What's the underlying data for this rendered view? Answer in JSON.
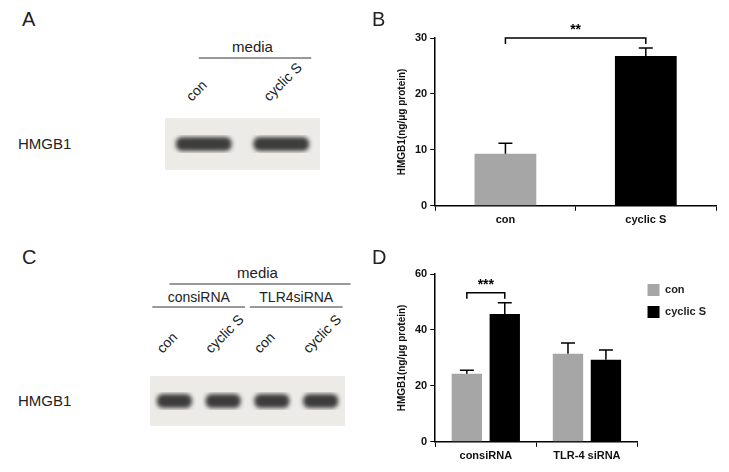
{
  "chart_data": [
    {
      "panel": "B",
      "type": "bar",
      "categories": [
        "con",
        "cyclic S"
      ],
      "values": [
        9.3,
        26.8
      ],
      "errors": [
        1.9,
        1.4
      ],
      "colors": [
        "#a6a6a6",
        "#000000"
      ],
      "y_label": "HMGB1(ng/μg protein)",
      "ylim": [
        0,
        30
      ],
      "yticks": [
        0,
        10,
        20,
        30
      ],
      "grid": false,
      "annotations": [
        {
          "text": "**",
          "between": [
            "con",
            "cyclic S"
          ]
        }
      ]
    },
    {
      "panel": "D",
      "type": "bar",
      "categories": [
        "consiRNA",
        "TLR-4 siRNA"
      ],
      "series": [
        {
          "name": "con",
          "color": "#a6a6a6",
          "values": [
            24.3,
            31.5
          ],
          "errors": [
            1.3,
            3.8
          ]
        },
        {
          "name": "cyclic S",
          "color": "#000000",
          "values": [
            45.7,
            29.3
          ],
          "errors": [
            4.0,
            3.5
          ]
        }
      ],
      "y_label": "HMGB1(ng/μg protein)",
      "ylim": [
        0,
        60
      ],
      "yticks": [
        0,
        20,
        40,
        60
      ],
      "grid": false,
      "legend": "top-right",
      "annotations": [
        {
          "text": "***",
          "category": "consiRNA",
          "between": [
            "con",
            "cyclic S"
          ]
        }
      ]
    }
  ],
  "blots": [
    {
      "panel": "A",
      "header": "media",
      "groups": [
        {
          "lanes": [
            "con",
            "cyclic S"
          ]
        }
      ],
      "row_label": "HMGB1"
    },
    {
      "panel": "C",
      "header": "media",
      "groups": [
        {
          "name": "consiRNA",
          "lanes": [
            "con",
            "cyclic S"
          ]
        },
        {
          "name": "TLR4siRNA",
          "lanes": [
            "con",
            "cyclic S"
          ]
        }
      ],
      "row_label": "HMGB1"
    }
  ]
}
